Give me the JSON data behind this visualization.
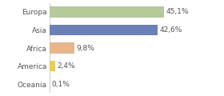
{
  "categories": [
    "Europa",
    "Asia",
    "Africa",
    "America",
    "Oceania"
  ],
  "values": [
    45.1,
    42.6,
    9.8,
    2.4,
    0.1
  ],
  "labels": [
    "45,1%",
    "42,6%",
    "9,8%",
    "2,4%",
    "0,1%"
  ],
  "bar_colors": [
    "#b5c99a",
    "#6b80b8",
    "#e8b48a",
    "#e8cc55",
    "#d8d8a0"
  ],
  "background_color": "#ffffff",
  "xlim": [
    0,
    58
  ],
  "label_fontsize": 6.5,
  "tick_fontsize": 6.5
}
